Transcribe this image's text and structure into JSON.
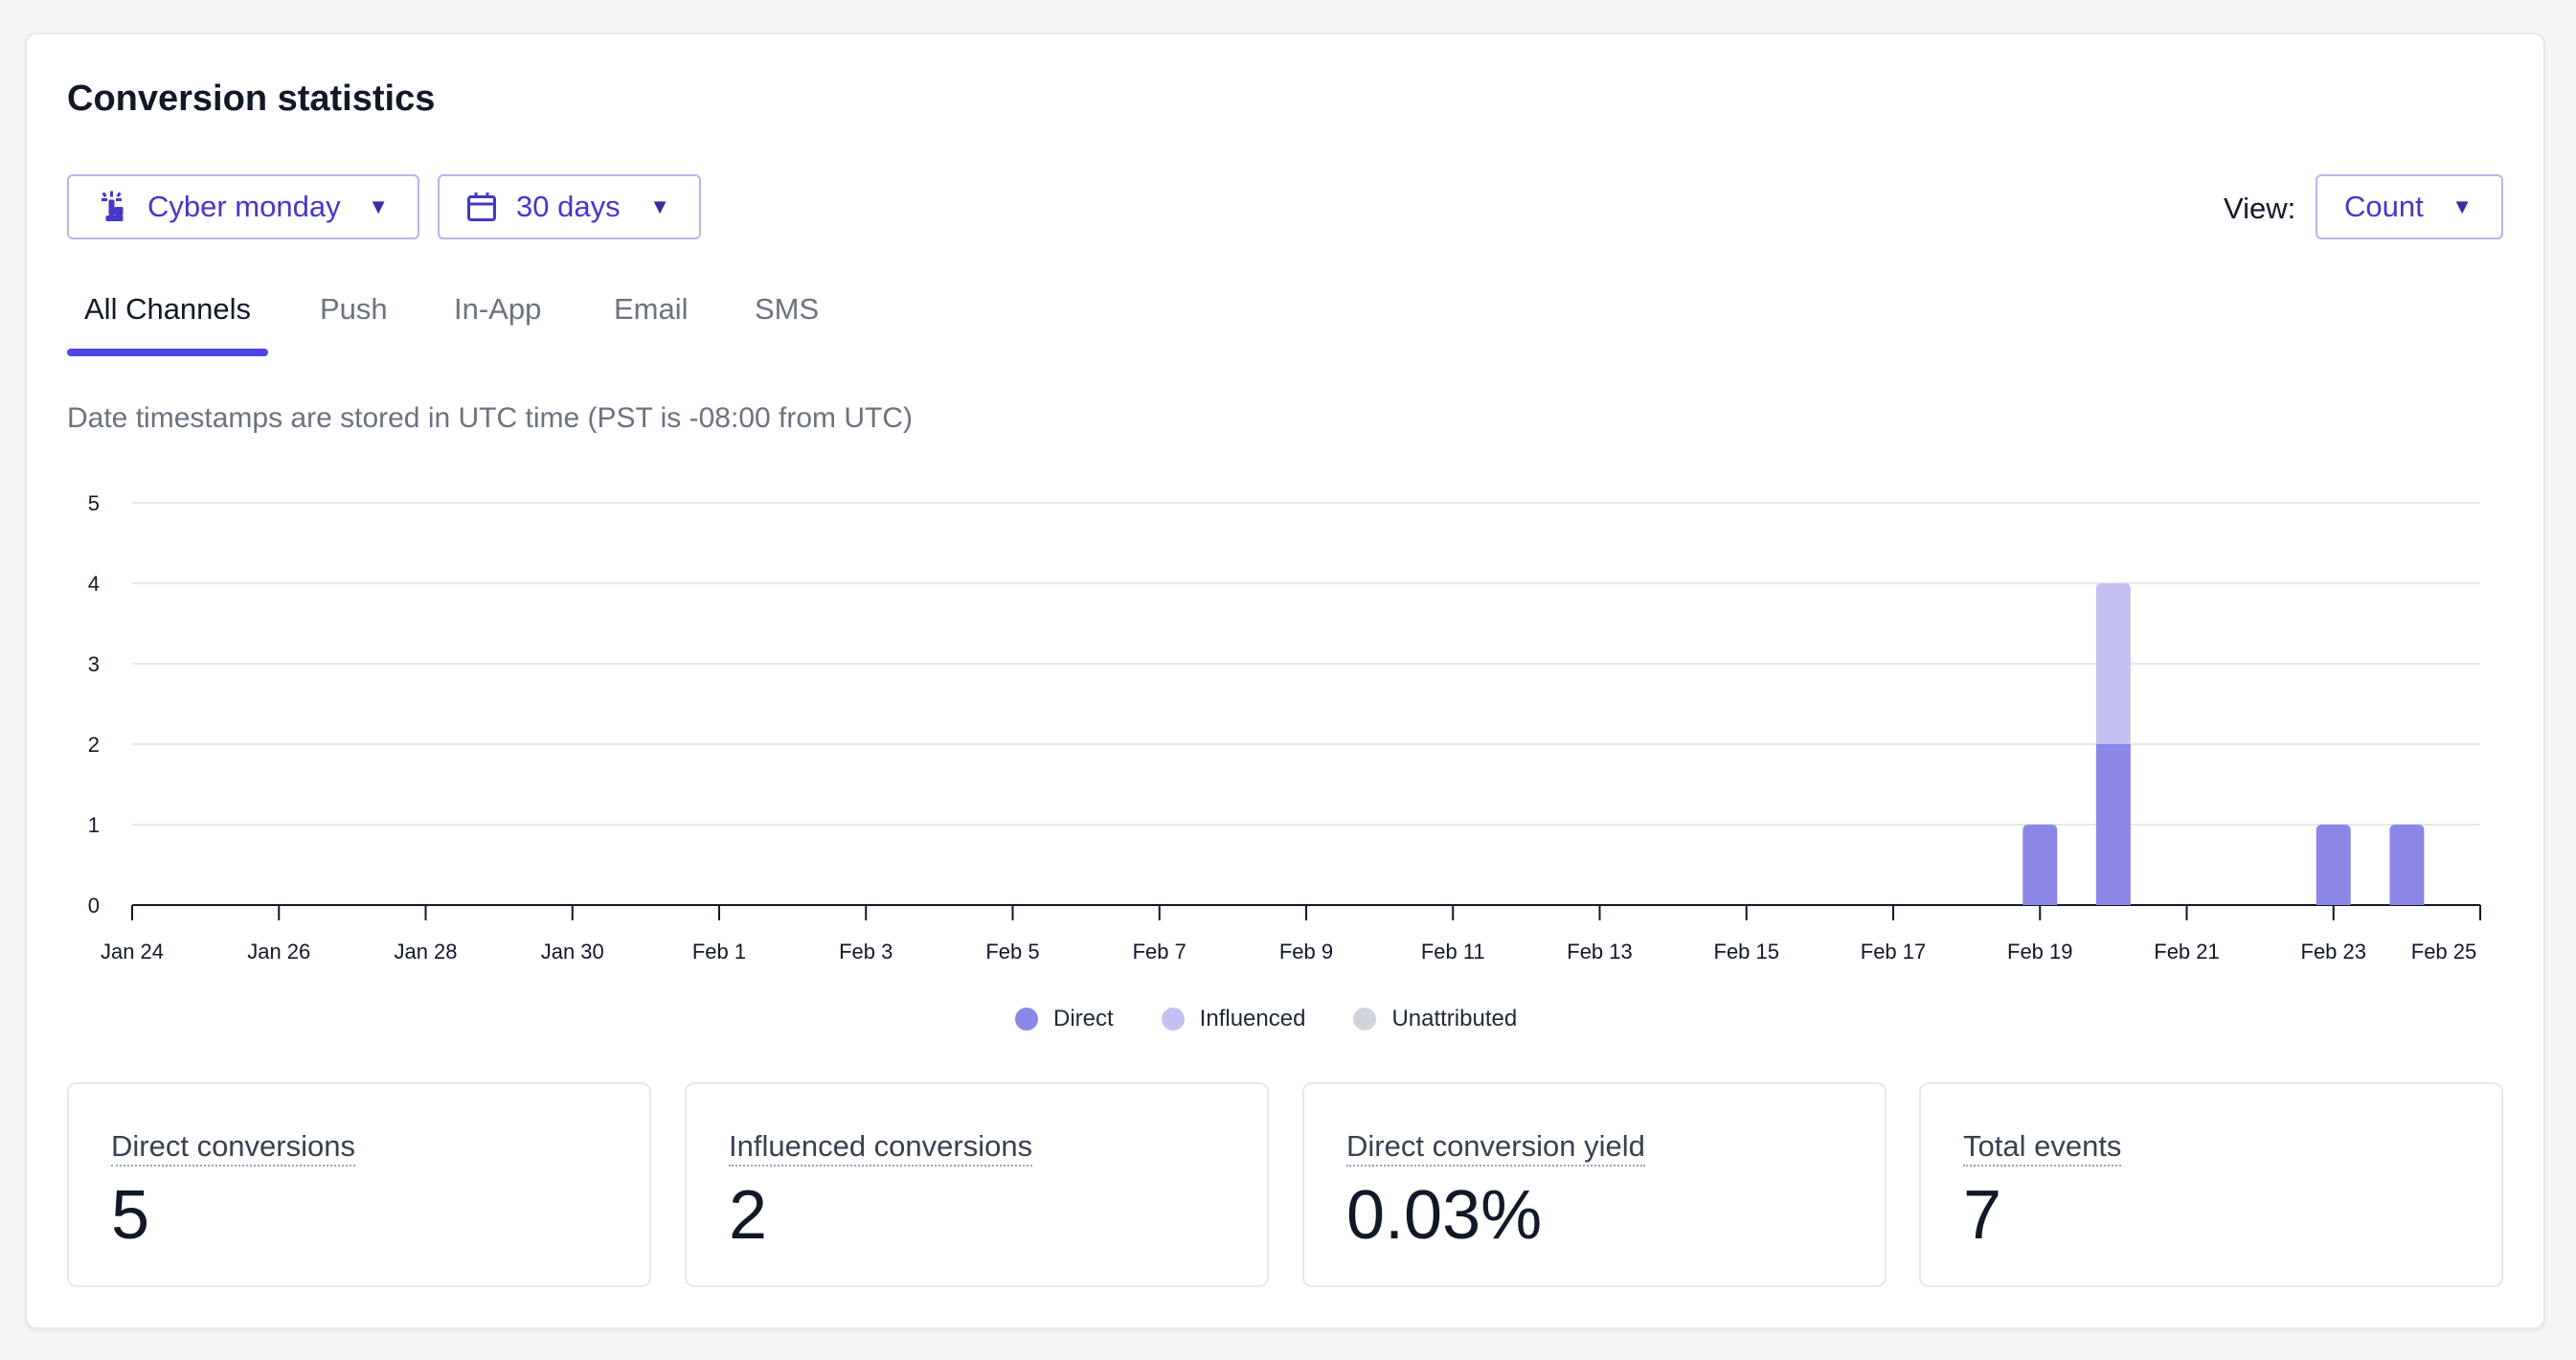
{
  "title": "Conversion statistics",
  "filters": {
    "campaign": "Cyber monday",
    "range": "30 days",
    "view_label": "View:",
    "view_value": "Count"
  },
  "icons": {
    "campaign": "campaign-icon",
    "range": "calendar-icon",
    "caret": "caret-down-icon"
  },
  "tabs": [
    "All Channels",
    "Push",
    "In-App",
    "Email",
    "SMS"
  ],
  "active_tab": "All Channels",
  "note": "Date timestamps are stored in UTC time (PST is -08:00 from UTC)",
  "colors": {
    "accent": "#4f46e5",
    "direct": "#8b87e6",
    "influenced": "#c4c1f2",
    "unattributed": "#d1d5db"
  },
  "chart_data": {
    "type": "bar",
    "stacked": true,
    "categories": [
      "Jan 24",
      "Jan 25",
      "Jan 26",
      "Jan 27",
      "Jan 28",
      "Jan 29",
      "Jan 30",
      "Jan 31",
      "Feb 1",
      "Feb 2",
      "Feb 3",
      "Feb 4",
      "Feb 5",
      "Feb 6",
      "Feb 7",
      "Feb 8",
      "Feb 9",
      "Feb 10",
      "Feb 11",
      "Feb 12",
      "Feb 13",
      "Feb 14",
      "Feb 15",
      "Feb 16",
      "Feb 17",
      "Feb 18",
      "Feb 19",
      "Feb 20",
      "Feb 21",
      "Feb 22",
      "Feb 23",
      "Feb 24",
      "Feb 25"
    ],
    "tick_labels": [
      "Jan 24",
      "Jan 26",
      "Jan 28",
      "Jan 30",
      "Feb 1",
      "Feb 3",
      "Feb 5",
      "Feb 7",
      "Feb 9",
      "Feb 11",
      "Feb 13",
      "Feb 15",
      "Feb 17",
      "Feb 19",
      "Feb 21",
      "Feb 23",
      "Feb 25"
    ],
    "series": [
      {
        "name": "Direct",
        "values": [
          0,
          0,
          0,
          0,
          0,
          0,
          0,
          0,
          0,
          0,
          0,
          0,
          0,
          0,
          0,
          0,
          0,
          0,
          0,
          0,
          0,
          0,
          0,
          0,
          0,
          0,
          1,
          2,
          0,
          0,
          1,
          1,
          0
        ]
      },
      {
        "name": "Influenced",
        "values": [
          0,
          0,
          0,
          0,
          0,
          0,
          0,
          0,
          0,
          0,
          0,
          0,
          0,
          0,
          0,
          0,
          0,
          0,
          0,
          0,
          0,
          0,
          0,
          0,
          0,
          0,
          0,
          2,
          0,
          0,
          0,
          0,
          0
        ]
      },
      {
        "name": "Unattributed",
        "values": [
          0,
          0,
          0,
          0,
          0,
          0,
          0,
          0,
          0,
          0,
          0,
          0,
          0,
          0,
          0,
          0,
          0,
          0,
          0,
          0,
          0,
          0,
          0,
          0,
          0,
          0,
          0,
          0,
          0,
          0,
          0,
          0,
          0
        ]
      }
    ],
    "ylim": [
      0,
      5
    ],
    "yticks": [
      0,
      1,
      2,
      3,
      4,
      5
    ],
    "grid": true,
    "legend": "bottom-center"
  },
  "stats": [
    {
      "label": "Direct conversions",
      "value": "5"
    },
    {
      "label": "Influenced conversions",
      "value": "2"
    },
    {
      "label": "Direct conversion yield",
      "value": "0.03%"
    },
    {
      "label": "Total events",
      "value": "7"
    }
  ]
}
